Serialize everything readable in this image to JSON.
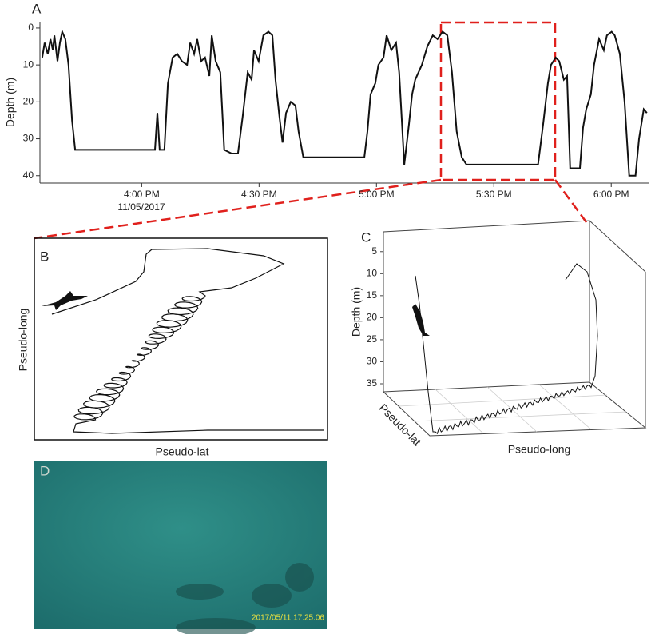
{
  "chart_data": [
    {
      "type": "line",
      "panel": "A",
      "ylabel": "Depth (m)",
      "x_sublabel": "11/05/2017",
      "color": "#111111",
      "y_reversed": true,
      "xlim": [
        934,
        1092
      ],
      "ylim": [
        -1.5,
        42
      ],
      "xticks": [
        {
          "value": 960,
          "label": "4:00 PM"
        },
        {
          "value": 990,
          "label": "4:30 PM"
        },
        {
          "value": 1020,
          "label": "5:00 PM"
        },
        {
          "value": 1050,
          "label": "5:30 PM"
        },
        {
          "value": 1080,
          "label": "6:00 PM"
        }
      ],
      "yticks": [
        0,
        10,
        20,
        30,
        40
      ],
      "x": [
        934.6,
        935.2,
        936.0,
        936.7,
        937.3,
        937.7,
        938.5,
        939.1,
        939.7,
        940.5,
        941.3,
        942.2,
        943.0,
        948.3,
        954.4,
        963.4,
        964.0,
        964.6,
        965.8,
        966.7,
        967.9,
        969.1,
        970.3,
        971.6,
        972.4,
        973.4,
        974.2,
        975.2,
        976.2,
        977.3,
        977.9,
        978.9,
        980.1,
        981.1,
        983.0,
        984.6,
        985.8,
        987.1,
        988.1,
        988.7,
        989.9,
        991.1,
        992.4,
        993.4,
        994.2,
        995.2,
        996.0,
        996.9,
        998.1,
        999.3,
        1000.1,
        1001.3,
        1009.5,
        1016.9,
        1017.7,
        1018.5,
        1019.7,
        1020.5,
        1021.8,
        1022.6,
        1023.8,
        1025.0,
        1025.8,
        1027.1,
        1028.3,
        1029.1,
        1029.9,
        1031.6,
        1033.0,
        1034.4,
        1035.6,
        1036.9,
        1038.1,
        1039.3,
        1040.5,
        1041.8,
        1043.0,
        1050.3,
        1061.3,
        1062.6,
        1063.8,
        1064.6,
        1065.8,
        1066.7,
        1067.9,
        1068.7,
        1069.5,
        1072.0,
        1072.8,
        1073.6,
        1074.8,
        1075.6,
        1076.9,
        1078.1,
        1078.9,
        1080.1,
        1080.9,
        1082.2,
        1083.4,
        1084.6,
        1086.2,
        1087.1,
        1088.3,
        1089.1
      ],
      "y": [
        8,
        4,
        7,
        3,
        6,
        2,
        9,
        4,
        1,
        3,
        10,
        25,
        33,
        33,
        33,
        33,
        23,
        33,
        33,
        15,
        8,
        7,
        9,
        10,
        4,
        7,
        3,
        9,
        8,
        13,
        2,
        9,
        12,
        33,
        34,
        34,
        24,
        12,
        14,
        6,
        9,
        2,
        1,
        2,
        14,
        24,
        31,
        23,
        20,
        21,
        28,
        35,
        35,
        35,
        28,
        18,
        15,
        10,
        8,
        2,
        6,
        4,
        12,
        37,
        26,
        18,
        14,
        10,
        5,
        2,
        3,
        1,
        2,
        12,
        28,
        35,
        37,
        37,
        37,
        26,
        15,
        10,
        8,
        9,
        14,
        13,
        38,
        38,
        27,
        22,
        18,
        10,
        3,
        6,
        2,
        1,
        2,
        7,
        20,
        40,
        40,
        30,
        22,
        23
      ]
    },
    {
      "type": "track",
      "panel": "B",
      "xlabel": "Pseudo-lat",
      "ylabel": "Pseudo-long"
    },
    {
      "type": "track3d",
      "panel": "C",
      "xlabel": "Pseudo-long",
      "ylabel": "Pseudo-lat",
      "zlabel": "Depth (m)",
      "zlim": [
        0.5,
        37
      ],
      "zticks": [
        5,
        10,
        15,
        20,
        25,
        30,
        35
      ]
    }
  ],
  "image": {
    "panel": "D",
    "timestamp": "2017/05/11 17:25:06"
  }
}
